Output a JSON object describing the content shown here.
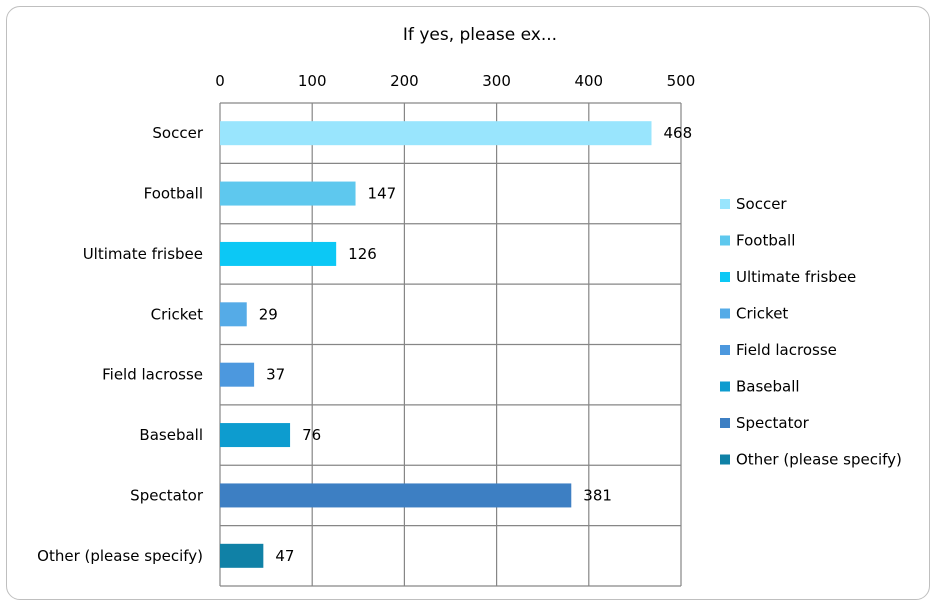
{
  "chart_data": {
    "type": "bar",
    "orientation": "horizontal",
    "title": "If yes, please ex...",
    "categories": [
      "Soccer",
      "Football",
      "Ultimate frisbee",
      "Cricket",
      "Field lacrosse",
      "Baseball",
      "Spectator",
      "Other (please specify)"
    ],
    "values": [
      468,
      147,
      126,
      29,
      37,
      76,
      381,
      47
    ],
    "colors": [
      "#99e5fd",
      "#5ec8ee",
      "#0cc8f5",
      "#55abe7",
      "#4c98de",
      "#0d9ccf",
      "#3d7fc3",
      "#1081a6"
    ],
    "xlim": [
      0,
      500
    ],
    "xticks": [
      0,
      100,
      200,
      300,
      400,
      500
    ],
    "x_axis_position": "top",
    "grid": true,
    "legend": {
      "position": "right",
      "entries": [
        "Soccer",
        "Football",
        "Ultimate frisbee",
        "Cricket",
        "Field lacrosse",
        "Baseball",
        "Spectator",
        "Other (please specify)"
      ]
    }
  }
}
